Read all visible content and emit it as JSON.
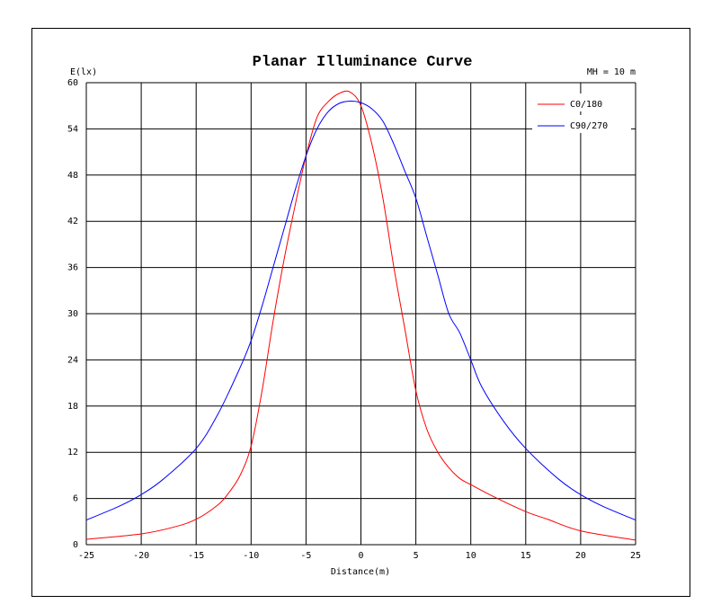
{
  "chart_data": {
    "type": "line",
    "title": "Planar Illuminance Curve",
    "subtitle": "MH = 10 m",
    "xlabel": "Distance(m)",
    "ylabel": "E(lx)",
    "xlim": [
      -25,
      25
    ],
    "ylim": [
      0,
      60
    ],
    "xticks": [
      -25,
      -20,
      -15,
      -10,
      -5,
      0,
      5,
      10,
      15,
      20,
      25
    ],
    "yticks": [
      0,
      6,
      12,
      18,
      24,
      30,
      36,
      42,
      48,
      54,
      60
    ],
    "grid": true,
    "legend_position": "top-right",
    "series": [
      {
        "name": "C0/180",
        "color": "#ff0000",
        "x": [
          -25,
          -20,
          -17,
          -15,
          -13,
          -12,
          -11,
          -10,
          -9,
          -8,
          -7,
          -6,
          -5,
          -4,
          -3,
          -2,
          -1,
          0,
          1,
          2,
          3,
          4,
          5,
          6,
          7,
          8,
          9,
          10,
          12,
          15,
          17,
          20,
          25
        ],
        "y": [
          0.7,
          1.4,
          2.3,
          3.3,
          5.2,
          6.8,
          9.0,
          12.8,
          20.0,
          29.0,
          37.0,
          44.0,
          50.5,
          55.5,
          57.5,
          58.6,
          58.8,
          57.0,
          52.0,
          45.0,
          36.0,
          28.0,
          20.0,
          15.0,
          12.0,
          10.0,
          8.6,
          7.8,
          6.3,
          4.3,
          3.3,
          1.8,
          0.6
        ]
      },
      {
        "name": "C90/270",
        "color": "#0000ff",
        "x": [
          -25,
          -22,
          -20,
          -18,
          -15,
          -13,
          -11,
          -10,
          -9,
          -8,
          -7,
          -6,
          -5,
          -4,
          -3,
          -2,
          -1,
          0,
          1,
          2,
          3,
          4,
          5,
          6,
          7,
          8,
          9,
          10,
          11,
          13,
          15,
          18,
          20,
          22,
          25
        ],
        "y": [
          3.2,
          5.0,
          6.5,
          8.5,
          12.5,
          17.0,
          23.0,
          26.5,
          31.0,
          36.0,
          41.0,
          46.0,
          50.5,
          54.0,
          56.2,
          57.3,
          57.6,
          57.4,
          56.6,
          55.0,
          52.0,
          48.5,
          45.0,
          40.0,
          35.0,
          30.0,
          27.5,
          24.0,
          20.5,
          16.0,
          12.5,
          8.5,
          6.5,
          5.0,
          3.2
        ]
      }
    ]
  }
}
